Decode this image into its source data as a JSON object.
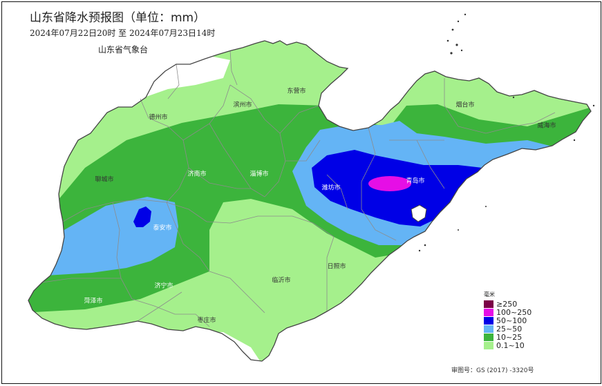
{
  "header": {
    "title": "山东省降水预报图（单位：mm）",
    "period": "2024年07月22日20时  至  2024年07月23日14时",
    "agency": "山东省气象台"
  },
  "cities": [
    {
      "name": "德州市",
      "cls": "",
      "key": "dezhou"
    },
    {
      "name": "滨州市",
      "cls": "",
      "key": "binzhou"
    },
    {
      "name": "东营市",
      "cls": "",
      "key": "dongying"
    },
    {
      "name": "烟台市",
      "cls": "",
      "key": "yantai"
    },
    {
      "name": "威海市",
      "cls": "",
      "key": "weihai"
    },
    {
      "name": "聊城市",
      "cls": "",
      "key": "liaocheng"
    },
    {
      "name": "济南市",
      "cls": "light",
      "key": "jinan"
    },
    {
      "name": "淄博市",
      "cls": "light",
      "key": "zibo"
    },
    {
      "name": "潍坊市",
      "cls": "light",
      "key": "weifang"
    },
    {
      "name": "青岛市",
      "cls": "light",
      "key": "qingdao"
    },
    {
      "name": "泰安市",
      "cls": "light",
      "key": "taian"
    },
    {
      "name": "济宁市",
      "cls": "light",
      "key": "jining"
    },
    {
      "name": "菏泽市",
      "cls": "light",
      "key": "heze"
    },
    {
      "name": "临沂市",
      "cls": "",
      "key": "linyi"
    },
    {
      "name": "日照市",
      "cls": "",
      "key": "rizhao"
    },
    {
      "name": "枣庄市",
      "cls": "",
      "key": "zaozhuang"
    }
  ],
  "legend": {
    "title": "毫米",
    "items": [
      {
        "label": "≥250",
        "color": "#7b0046"
      },
      {
        "label": "100~250",
        "color": "#e60ee6"
      },
      {
        "label": "50~100",
        "color": "#0000e6"
      },
      {
        "label": "25~50",
        "color": "#64b4f5"
      },
      {
        "label": "10~25",
        "color": "#3cb43c"
      },
      {
        "label": "0.1~10",
        "color": "#a5f08c"
      }
    ]
  },
  "review_number": "审图号：GS (2017) -3320号"
}
